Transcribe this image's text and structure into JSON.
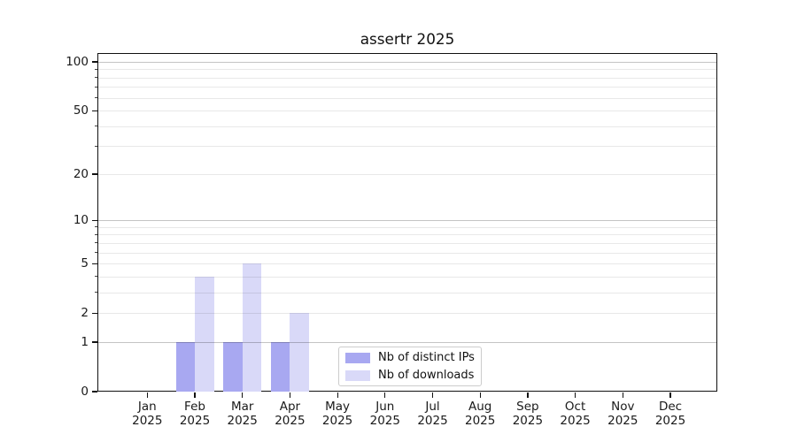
{
  "chart_data": {
    "type": "bar",
    "title": "assertr 2025",
    "categories": [
      {
        "month": "Jan",
        "year": "2025"
      },
      {
        "month": "Feb",
        "year": "2025"
      },
      {
        "month": "Mar",
        "year": "2025"
      },
      {
        "month": "Apr",
        "year": "2025"
      },
      {
        "month": "May",
        "year": "2025"
      },
      {
        "month": "Jun",
        "year": "2025"
      },
      {
        "month": "Jul",
        "year": "2025"
      },
      {
        "month": "Aug",
        "year": "2025"
      },
      {
        "month": "Sep",
        "year": "2025"
      },
      {
        "month": "Oct",
        "year": "2025"
      },
      {
        "month": "Nov",
        "year": "2025"
      },
      {
        "month": "Dec",
        "year": "2025"
      }
    ],
    "series": [
      {
        "name": "Nb of distinct IPs",
        "color": "#a8a8f1",
        "values": [
          0,
          1,
          1,
          1,
          0,
          0,
          0,
          0,
          0,
          0,
          0,
          0
        ]
      },
      {
        "name": "Nb of downloads",
        "color": "#d9d9f8",
        "values": [
          0,
          4,
          5,
          2,
          0,
          0,
          0,
          0,
          0,
          0,
          0,
          0
        ]
      }
    ],
    "y_axis": {
      "scale": "log1p",
      "labeled_ticks": [
        0,
        1,
        2,
        5,
        10,
        20,
        50,
        100
      ],
      "major_gridlines": [
        1,
        10,
        100
      ],
      "minor_gridlines": [
        2,
        3,
        4,
        5,
        6,
        7,
        8,
        9,
        20,
        30,
        40,
        50,
        60,
        70,
        80,
        90
      ],
      "ylim": [
        0,
        113
      ]
    },
    "legend": {
      "position": "lower-center",
      "frame": true
    },
    "grid": true,
    "colors": {
      "background": "#ffffff",
      "spine": "#111111",
      "major_grid": "rgba(0,0,0,0.23)",
      "minor_grid": "rgba(0,0,0,0.09)",
      "text": "#1a1a1a",
      "legend_border": "#cccccc"
    }
  }
}
